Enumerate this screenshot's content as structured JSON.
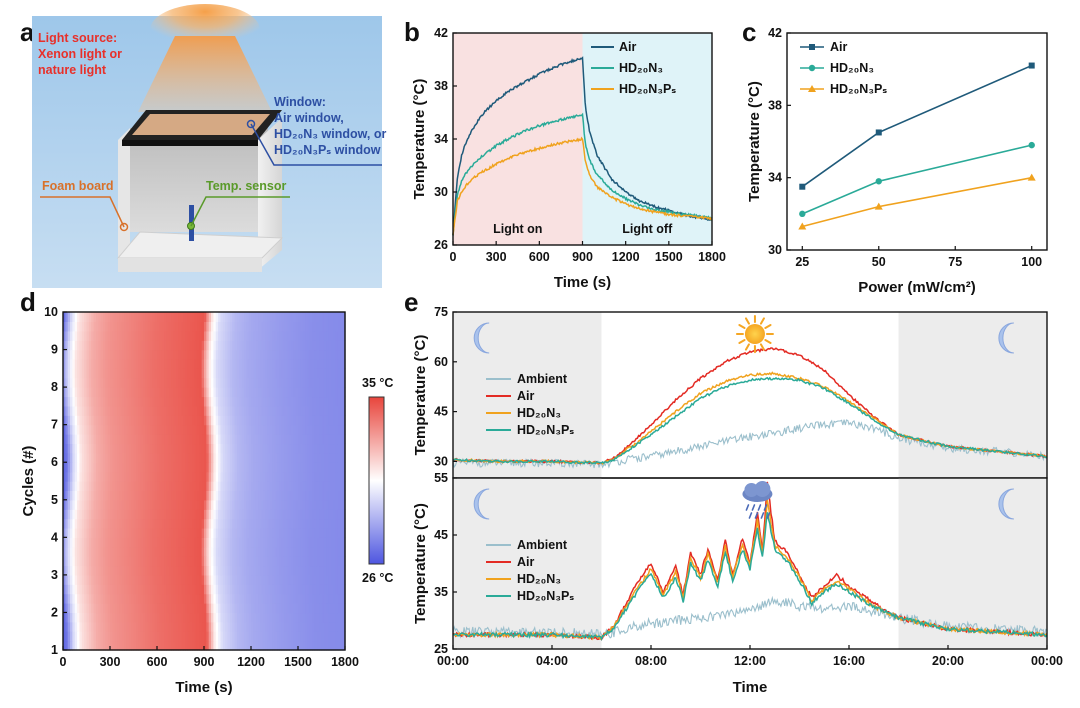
{
  "panel_labels": {
    "a": "a",
    "b": "b",
    "c": "c",
    "d": "d",
    "e": "e"
  },
  "scene": {
    "light_source": [
      "Light source:",
      "Xenon light or",
      "nature light"
    ],
    "window_title": "Window:",
    "window_lines": [
      "Air window,",
      "HD₂₀N₃ window, or",
      "HD₂₀N₃Pₛ window"
    ],
    "foam_board": "Foam board",
    "temp_sensor": "Temp. sensor",
    "colors": {
      "light_text": "#e8302a",
      "window_text": "#2d4fa3",
      "foam_text": "#d8712a",
      "sensor_text": "#5a9a2a"
    }
  },
  "chart_data": [
    {
      "id": "b",
      "type": "line",
      "xlabel": "Time (s)",
      "ylabel": "Temperature (°C)",
      "xlim": [
        0,
        1800
      ],
      "ylim": [
        26,
        42
      ],
      "xticks": [
        0,
        300,
        600,
        900,
        1200,
        1500,
        1800
      ],
      "yticks": [
        26,
        30,
        34,
        38,
        42
      ],
      "regions": [
        {
          "label": "Light on",
          "from": 0,
          "to": 900,
          "color": "#f9e1e1"
        },
        {
          "label": "Light off",
          "from": 900,
          "to": 1800,
          "color": "#dff3f8"
        }
      ],
      "series": [
        {
          "name": "Air",
          "color": "#1f5a7a",
          "x": [
            0,
            30,
            60,
            100,
            150,
            200,
            300,
            400,
            500,
            600,
            700,
            800,
            900,
            920,
            950,
            1000,
            1100,
            1200,
            1300,
            1400,
            1500,
            1600,
            1700,
            1800
          ],
          "y": [
            26.8,
            31.0,
            32.8,
            34.0,
            35.0,
            35.8,
            36.9,
            37.7,
            38.3,
            38.9,
            39.4,
            39.8,
            40.1,
            36.5,
            34.5,
            32.8,
            31.0,
            30.0,
            29.3,
            28.9,
            28.6,
            28.3,
            28.1,
            27.9
          ]
        },
        {
          "name": "HD₂₀N₃",
          "color": "#2aaa98",
          "x": [
            0,
            30,
            60,
            100,
            150,
            200,
            300,
            400,
            500,
            600,
            700,
            800,
            900,
            920,
            950,
            1000,
            1100,
            1200,
            1300,
            1400,
            1500,
            1600,
            1700,
            1800
          ],
          "y": [
            26.8,
            29.8,
            30.8,
            31.6,
            32.2,
            32.7,
            33.5,
            34.1,
            34.6,
            35.0,
            35.3,
            35.6,
            35.8,
            33.6,
            32.4,
            31.3,
            30.2,
            29.5,
            29.0,
            28.7,
            28.5,
            28.3,
            28.2,
            28.0
          ]
        },
        {
          "name": "HD₂₀N₃Pₛ",
          "color": "#f0a21e",
          "x": [
            0,
            30,
            60,
            100,
            150,
            200,
            300,
            400,
            500,
            600,
            700,
            800,
            900,
            920,
            950,
            1000,
            1100,
            1200,
            1300,
            1400,
            1500,
            1600,
            1700,
            1800
          ],
          "y": [
            26.8,
            29.3,
            30.0,
            30.6,
            31.1,
            31.5,
            32.1,
            32.6,
            33.0,
            33.3,
            33.6,
            33.8,
            34.0,
            32.3,
            31.3,
            30.4,
            29.6,
            29.1,
            28.7,
            28.5,
            28.3,
            28.2,
            28.1,
            28.0
          ]
        }
      ],
      "legend": "top-right"
    },
    {
      "id": "c",
      "type": "line",
      "xlabel": "Power (mW/cm²)",
      "ylabel": "Temperature (°C)",
      "xlim": [
        20,
        105
      ],
      "ylim": [
        30,
        42
      ],
      "xticks": [
        25,
        50,
        75,
        100
      ],
      "yticks": [
        30,
        34,
        38,
        42
      ],
      "x": [
        25,
        50,
        100
      ],
      "series": [
        {
          "name": "Air",
          "color": "#1f5a7a",
          "marker": "square",
          "values": [
            33.5,
            36.5,
            40.2
          ]
        },
        {
          "name": "HD₂₀N₃",
          "color": "#2aaa98",
          "marker": "circle",
          "values": [
            32.0,
            33.8,
            35.8
          ]
        },
        {
          "name": "HD₂₀N₃Pₛ",
          "color": "#f0a21e",
          "marker": "triangle",
          "values": [
            31.3,
            32.4,
            34.0
          ]
        }
      ],
      "legend": "top-left"
    },
    {
      "id": "d",
      "type": "heatmap",
      "xlabel": "Time (s)",
      "ylabel": "Cycles (#)",
      "xlim": [
        0,
        1800
      ],
      "ylim": [
        1,
        10
      ],
      "xticks": [
        0,
        300,
        600,
        900,
        1200,
        1500,
        1800
      ],
      "yticks": [
        1,
        2,
        3,
        4,
        5,
        6,
        7,
        8,
        9,
        10
      ],
      "colorbar": {
        "max_label": "35 °C",
        "min_label": "26 °C",
        "max": 35,
        "min": 26,
        "max_color": "#e8453c",
        "mid_color": "#ffffff",
        "min_color": "#4e56e0"
      },
      "profile_time": [
        0,
        50,
        100,
        200,
        300,
        600,
        800,
        900,
        920,
        950,
        1000,
        1100,
        1200,
        1400,
        1600,
        1800
      ],
      "profile_temp": [
        26.5,
        29.5,
        31.2,
        32.5,
        33.1,
        34.0,
        34.4,
        34.6,
        33.0,
        31.0,
        29.5,
        28.6,
        28.2,
        27.8,
        27.5,
        27.4
      ]
    },
    {
      "id": "e-top",
      "type": "line",
      "ylabel": "Temperature (°C)",
      "ylim": [
        25,
        75
      ],
      "yticks": [
        30,
        45,
        60,
        75
      ],
      "xlim": [
        0,
        24
      ],
      "night_shading": [
        [
          0,
          6
        ],
        [
          18,
          24
        ]
      ],
      "icons": [
        "moon-icon",
        "sun-icon",
        "moon-icon"
      ],
      "series": [
        {
          "name": "Ambient",
          "color": "#9bbfcc",
          "x": [
            0,
            2,
            4,
            6,
            7,
            8,
            9,
            10,
            11,
            12,
            13,
            14,
            15,
            16,
            17,
            18,
            20,
            22,
            24
          ],
          "y": [
            29.5,
            29.5,
            29.5,
            29.0,
            30.5,
            31.5,
            33.0,
            34.5,
            36.0,
            37.5,
            38.5,
            40.0,
            41.0,
            41.5,
            40.0,
            37.0,
            34.0,
            33.0,
            31.5
          ]
        },
        {
          "name": "Air",
          "color": "#e32b24",
          "x": [
            0,
            2,
            4,
            6,
            6.5,
            7,
            7.5,
            8,
            9,
            10,
            11,
            12,
            13,
            14,
            15,
            16,
            17,
            18,
            20,
            22,
            24
          ],
          "y": [
            30.5,
            30.0,
            30.0,
            29.5,
            31.0,
            34.0,
            37.5,
            41.0,
            48.5,
            55.0,
            60.0,
            63.0,
            64.0,
            62.0,
            57.5,
            50.0,
            43.5,
            38.0,
            34.5,
            33.0,
            31.5
          ]
        },
        {
          "name": "HD₂₀N₃",
          "color": "#f0a21e",
          "x": [
            0,
            2,
            4,
            6,
            6.5,
            7,
            7.5,
            8,
            9,
            10,
            11,
            12,
            13,
            14,
            15,
            16,
            17,
            18,
            20,
            22,
            24
          ],
          "y": [
            30.5,
            30.0,
            30.0,
            29.5,
            30.5,
            33.5,
            36.0,
            39.0,
            45.0,
            50.5,
            54.0,
            56.0,
            56.5,
            55.0,
            52.5,
            48.0,
            43.0,
            38.0,
            34.5,
            33.0,
            31.5
          ]
        },
        {
          "name": "HD₂₀N₃Pₛ",
          "color": "#2aaa98",
          "x": [
            0,
            2,
            4,
            6,
            6.5,
            7,
            7.5,
            8,
            9,
            10,
            11,
            12,
            13,
            14,
            15,
            16,
            17,
            18,
            20,
            22,
            24
          ],
          "y": [
            30.5,
            30.0,
            30.0,
            29.5,
            30.5,
            33.0,
            35.5,
            38.0,
            43.5,
            49.0,
            52.5,
            54.5,
            55.0,
            54.5,
            52.0,
            47.5,
            42.5,
            38.0,
            34.5,
            33.0,
            31.5
          ]
        }
      ],
      "legend": "left"
    },
    {
      "id": "e-bottom",
      "type": "line",
      "xlabel": "Time",
      "ylabel": "Temperature (°C)",
      "ylim": [
        25,
        55
      ],
      "yticks": [
        25,
        35,
        45,
        55
      ],
      "xlim": [
        0,
        24
      ],
      "xticks": [
        "00:00",
        "04:00",
        "08:00",
        "12:00",
        "16:00",
        "20:00",
        "00:00"
      ],
      "night_shading": [
        [
          0,
          6
        ],
        [
          18,
          24
        ]
      ],
      "icons": [
        "moon-icon",
        "rain-cloud-icon",
        "moon-icon"
      ],
      "series": [
        {
          "name": "Ambient",
          "color": "#9bbfcc",
          "x": [
            0,
            2,
            4,
            6,
            7,
            8,
            9,
            10,
            11,
            12,
            13,
            14,
            15,
            16,
            17,
            18,
            20,
            22,
            24
          ],
          "y": [
            28.0,
            28.0,
            28.0,
            27.5,
            28.5,
            29.5,
            30.0,
            30.5,
            31.0,
            32.0,
            33.5,
            32.5,
            32.0,
            32.5,
            31.5,
            30.5,
            29.0,
            28.5,
            28.0
          ]
        },
        {
          "name": "Air",
          "color": "#e32b24",
          "x": [
            0,
            2,
            4,
            6,
            6.5,
            7,
            7.5,
            8,
            8.5,
            9,
            9.3,
            9.6,
            10,
            10.3,
            10.7,
            11,
            11.3,
            11.7,
            12,
            12.3,
            12.5,
            12.7,
            13,
            13.5,
            14,
            14.5,
            15,
            15.5,
            16,
            17,
            18,
            20,
            22,
            24
          ],
          "y": [
            27.5,
            27.5,
            27.5,
            27.0,
            29.0,
            33.0,
            37.0,
            40.0,
            35.0,
            39.5,
            34.5,
            42.0,
            38.0,
            42.5,
            37.0,
            44.0,
            38.0,
            44.5,
            40.0,
            49.0,
            42.0,
            54.0,
            44.0,
            42.0,
            38.0,
            34.0,
            36.0,
            38.0,
            36.0,
            33.0,
            30.5,
            28.5,
            28.0,
            27.5
          ]
        },
        {
          "name": "HD₂₀N₃",
          "color": "#f0a21e",
          "x": [
            0,
            2,
            4,
            6,
            6.5,
            7,
            7.5,
            8,
            8.5,
            9,
            9.3,
            9.6,
            10,
            10.3,
            10.7,
            11,
            11.3,
            11.7,
            12,
            12.3,
            12.5,
            12.7,
            13,
            13.5,
            14,
            14.5,
            15,
            15.5,
            16,
            17,
            18,
            20,
            22,
            24
          ],
          "y": [
            27.5,
            27.5,
            27.5,
            27.0,
            29.0,
            32.5,
            36.0,
            39.0,
            34.5,
            38.5,
            34.0,
            41.0,
            37.5,
            41.5,
            36.5,
            43.0,
            37.5,
            43.5,
            39.5,
            47.5,
            41.5,
            51.0,
            43.0,
            41.0,
            37.5,
            33.5,
            35.5,
            37.0,
            35.5,
            32.5,
            30.5,
            28.5,
            28.0,
            27.5
          ]
        },
        {
          "name": "HD₂₀N₃Pₛ",
          "color": "#2aaa98",
          "x": [
            0,
            2,
            4,
            6,
            6.5,
            7,
            7.5,
            8,
            8.5,
            9,
            9.3,
            9.6,
            10,
            10.3,
            10.7,
            11,
            11.3,
            11.7,
            12,
            12.3,
            12.5,
            12.7,
            13,
            13.5,
            14,
            14.5,
            15,
            15.5,
            16,
            17,
            18,
            20,
            22,
            24
          ],
          "y": [
            27.5,
            27.5,
            27.5,
            27.0,
            28.5,
            32.0,
            35.5,
            38.0,
            34.0,
            37.5,
            33.5,
            40.0,
            37.0,
            40.5,
            36.0,
            42.0,
            37.0,
            42.5,
            39.0,
            46.0,
            41.0,
            49.0,
            42.5,
            40.5,
            37.0,
            33.0,
            35.0,
            36.5,
            35.0,
            32.5,
            30.5,
            28.5,
            28.0,
            27.5
          ]
        }
      ],
      "legend": "left"
    }
  ]
}
